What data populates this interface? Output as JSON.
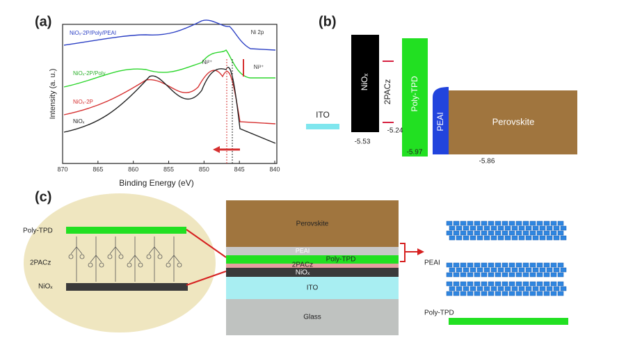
{
  "panel_a": {
    "label": "(a)",
    "x_axis_title": "Binding Energy (eV)",
    "y_axis_title": "Intensity (a. u.)",
    "x_tick_labels": [
      "870",
      "865",
      "860",
      "855",
      "850",
      "845",
      "840"
    ],
    "region": "Ni 2p",
    "peak_labels": [
      "Ni³⁺",
      "Ni²⁺"
    ],
    "curve_labels": [
      "NiOₓ-2P/Poly/PEAI",
      "NiOₓ-2P/Poly",
      "NiOₓ-2P",
      "NiOₓ"
    ]
  },
  "panel_b": {
    "label": "(b)",
    "layers": [
      "ITO",
      "NiOₓ",
      "2PACz",
      "Poly-TPD",
      "PEAI",
      "Perovskite"
    ],
    "levels": [
      "-5.53",
      "-5.24",
      "-5.97",
      "-5.86"
    ]
  },
  "panel_c": {
    "label": "(c)",
    "left_labels": [
      "Poly-TPD",
      "2PACz",
      "NiOₓ"
    ],
    "stack_labels": [
      "Perovskite",
      "PEAI",
      "Poly-TPD",
      "2PACz",
      "NiOₓ",
      "ITO",
      "Glass"
    ],
    "right_labels": [
      "PEAI",
      "Poly-TPD"
    ]
  }
}
